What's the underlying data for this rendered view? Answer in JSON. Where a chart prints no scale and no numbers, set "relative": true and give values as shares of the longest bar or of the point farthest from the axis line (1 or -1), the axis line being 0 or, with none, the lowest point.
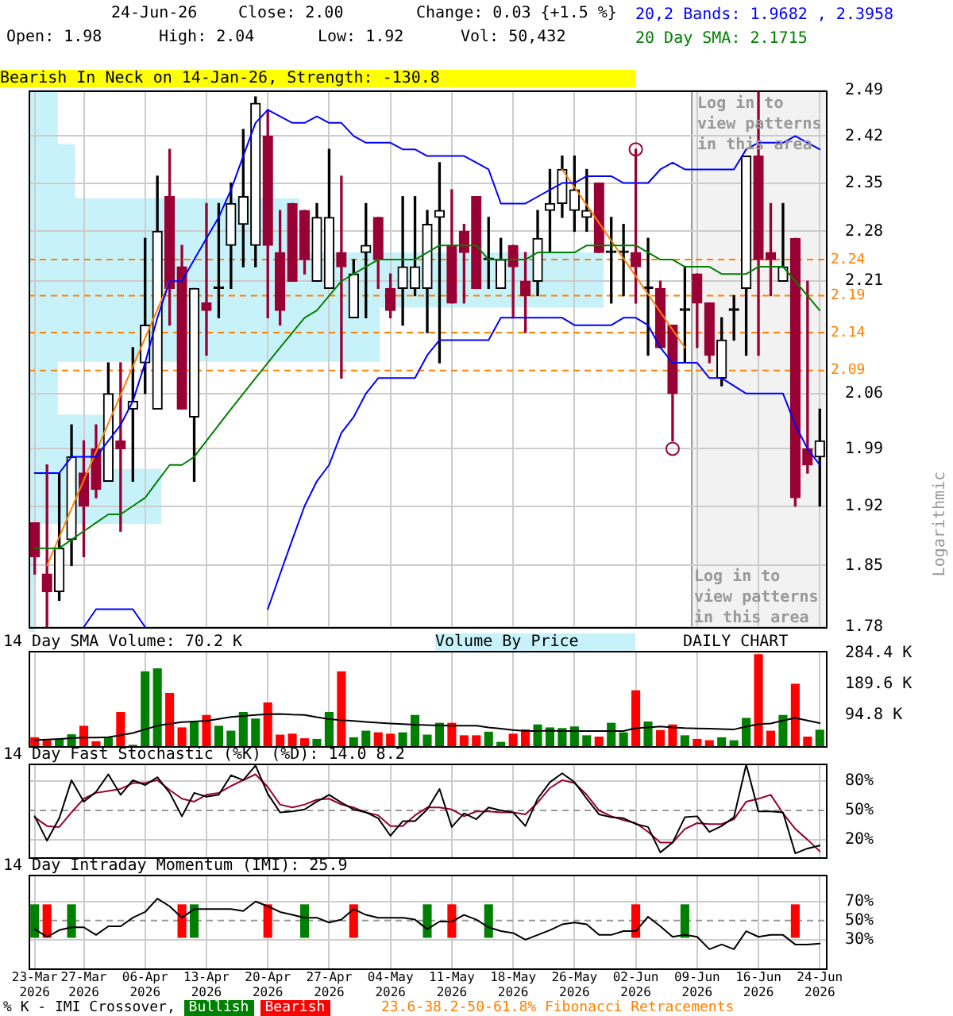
{
  "chart_data": [
    {
      "type": "candlestick",
      "title": "24-Jun-26",
      "ylabel": "Logarithmic",
      "categories": [
        "23-Mar 2026",
        null,
        null,
        null,
        "27-Mar 2026",
        null,
        null,
        null,
        null,
        "06-Apr 2026",
        null,
        null,
        null,
        null,
        "13-Apr 2026",
        null,
        null,
        null,
        null,
        "20-Apr 2026",
        null,
        null,
        null,
        null,
        "27-Apr 2026",
        null,
        null,
        null,
        null,
        "04-May 2026",
        null,
        null,
        null,
        null,
        "11-May 2026",
        null,
        null,
        null,
        null,
        "18-May 2026",
        null,
        null,
        null,
        null,
        "26-May 2026",
        null,
        null,
        null,
        null,
        "02-Jun 2026",
        null,
        null,
        null,
        null,
        "09-Jun 2026",
        null,
        null,
        null,
        null,
        "16-Jun 2026",
        null,
        null,
        null,
        null,
        "24-Jun 2026"
      ],
      "ohlc": [
        [
          1.9,
          1.9,
          1.84,
          1.86
        ],
        [
          1.84,
          1.97,
          1.78,
          1.82
        ],
        [
          1.82,
          1.96,
          1.81,
          1.87
        ],
        [
          1.88,
          2.02,
          1.85,
          1.98
        ],
        [
          1.96,
          2.0,
          1.86,
          1.92
        ],
        [
          1.99,
          2.02,
          1.93,
          1.94
        ],
        [
          1.95,
          2.1,
          1.95,
          2.06
        ],
        [
          2.0,
          2.1,
          1.89,
          1.99
        ],
        [
          2.04,
          2.12,
          1.95,
          2.05
        ],
        [
          2.1,
          2.27,
          2.06,
          2.15
        ],
        [
          2.04,
          2.36,
          2.04,
          2.28
        ],
        [
          2.33,
          2.4,
          2.15,
          2.2
        ],
        [
          2.23,
          2.26,
          2.04,
          2.04
        ],
        [
          2.03,
          2.2,
          1.95,
          2.2
        ],
        [
          2.18,
          2.32,
          2.11,
          2.17
        ],
        [
          2.2,
          2.32,
          2.16,
          2.2
        ],
        [
          2.26,
          2.35,
          2.2,
          2.32
        ],
        [
          2.29,
          2.43,
          2.23,
          2.33
        ],
        [
          2.26,
          2.48,
          2.23,
          2.47
        ],
        [
          2.42,
          2.46,
          2.16,
          2.26
        ],
        [
          2.25,
          2.31,
          2.15,
          2.17
        ],
        [
          2.32,
          2.32,
          2.21,
          2.21
        ],
        [
          2.31,
          2.31,
          2.22,
          2.24
        ],
        [
          2.21,
          2.32,
          2.21,
          2.3
        ],
        [
          2.2,
          2.4,
          2.2,
          2.3
        ],
        [
          2.25,
          2.36,
          2.08,
          2.23
        ],
        [
          2.16,
          2.24,
          2.16,
          2.22
        ],
        [
          2.25,
          2.32,
          2.16,
          2.26
        ],
        [
          2.3,
          2.3,
          2.2,
          2.24
        ],
        [
          2.2,
          2.22,
          2.16,
          2.17
        ],
        [
          2.2,
          2.33,
          2.15,
          2.23
        ],
        [
          2.2,
          2.33,
          2.19,
          2.23
        ],
        [
          2.2,
          2.31,
          2.14,
          2.29
        ],
        [
          2.3,
          2.38,
          2.1,
          2.31
        ],
        [
          2.26,
          2.34,
          2.18,
          2.18
        ],
        [
          2.28,
          2.29,
          2.18,
          2.25
        ],
        [
          2.33,
          2.33,
          2.2,
          2.2
        ],
        [
          2.24,
          2.3,
          2.2,
          2.24
        ],
        [
          2.2,
          2.27,
          2.2,
          2.24
        ],
        [
          2.26,
          2.26,
          2.16,
          2.23
        ],
        [
          2.21,
          2.25,
          2.14,
          2.19
        ],
        [
          2.21,
          2.31,
          2.19,
          2.27
        ],
        [
          2.31,
          2.37,
          2.25,
          2.32
        ],
        [
          2.32,
          2.39,
          2.3,
          2.37
        ],
        [
          2.31,
          2.39,
          2.28,
          2.34
        ],
        [
          2.3,
          2.37,
          2.28,
          2.31
        ],
        [
          2.35,
          2.35,
          2.25,
          2.25
        ],
        [
          2.25,
          2.3,
          2.18,
          2.25
        ],
        [
          2.25,
          2.29,
          2.19,
          2.25
        ],
        [
          2.25,
          2.4,
          2.18,
          2.23
        ],
        [
          2.2,
          2.27,
          2.11,
          2.2
        ],
        [
          2.2,
          2.21,
          2.12,
          2.12
        ],
        [
          2.15,
          2.15,
          2.0,
          2.06
        ],
        [
          2.17,
          2.23,
          2.1,
          2.17
        ],
        [
          2.22,
          2.22,
          2.12,
          2.18
        ],
        [
          2.18,
          2.18,
          2.1,
          2.11
        ],
        [
          2.08,
          2.16,
          2.07,
          2.13
        ],
        [
          2.17,
          2.19,
          2.13,
          2.17
        ],
        [
          2.2,
          2.39,
          2.11,
          2.39
        ],
        [
          2.39,
          2.49,
          2.11,
          2.24
        ],
        [
          2.25,
          2.32,
          2.19,
          2.24
        ],
        [
          2.21,
          2.32,
          2.21,
          2.23
        ],
        [
          2.27,
          2.27,
          1.92,
          1.93
        ],
        [
          1.99,
          2.21,
          1.96,
          1.97
        ],
        [
          1.98,
          2.04,
          1.92,
          2.0
        ]
      ],
      "colors": [
        "#990033",
        "#990033",
        "#000000",
        "#000000",
        "#990033",
        "#990033",
        "#000000",
        "#990033",
        "#000000",
        "#000000",
        "#000000",
        "#990033",
        "#990033",
        "#000000",
        "#990033",
        "#000000",
        "#000000",
        "#000000",
        "#000000",
        "#990033",
        "#990033",
        "#990033",
        "#990033",
        "#000000",
        "#000000",
        "#990033",
        "#000000",
        "#000000",
        "#990033",
        "#990033",
        "#000000",
        "#000000",
        "#000000",
        "#000000",
        "#990033",
        "#990033",
        "#990033",
        "#000000",
        "#000000",
        "#990033",
        "#990033",
        "#000000",
        "#000000",
        "#000000",
        "#000000",
        "#000000",
        "#990033",
        "#000000",
        "#000000",
        "#990033",
        "#000000",
        "#990033",
        "#990033",
        "#000000",
        "#990033",
        "#990033",
        "#000000",
        "#000000",
        "#000000",
        "#990033",
        "#990033",
        "#000000",
        "#990033",
        "#990033",
        "#000000"
      ],
      "series": [
        {
          "name": "20,2 Bands: 1.9682 , 2.3958",
          "type": "line",
          "color": "#0000ff",
          "values": [
            1.96,
            1.96,
            1.96,
            1.98,
            1.98,
            1.98,
            2.0,
            2.02,
            2.05,
            2.1,
            2.16,
            2.21,
            2.21,
            2.24,
            2.27,
            2.3,
            2.34,
            2.39,
            2.44,
            2.46,
            2.45,
            2.44,
            2.44,
            2.45,
            2.44,
            2.44,
            2.42,
            2.41,
            2.41,
            2.41,
            2.4,
            2.4,
            2.39,
            2.39,
            2.39,
            2.39,
            2.38,
            2.37,
            2.32,
            2.32,
            2.32,
            2.33,
            2.34,
            2.35,
            2.35,
            2.36,
            2.36,
            2.36,
            2.35,
            2.35,
            2.35,
            2.37,
            2.38,
            2.37,
            2.37,
            2.37,
            2.37,
            2.37,
            2.4,
            2.41,
            2.41,
            2.41,
            2.42,
            2.41,
            2.4
          ]
        },
        {
          "type": "line",
          "color": "#0000ff",
          "values": [
            null,
            null,
            null,
            null,
            1.78,
            1.8,
            1.8,
            1.8,
            1.8,
            1.78,
            null,
            null,
            null,
            null,
            null,
            null,
            null,
            null,
            null,
            1.8,
            1.84,
            1.88,
            1.92,
            1.95,
            1.97,
            2.01,
            2.03,
            2.06,
            2.08,
            2.08,
            2.08,
            2.08,
            2.11,
            2.13,
            2.13,
            2.13,
            2.13,
            2.13,
            2.16,
            2.16,
            2.16,
            2.16,
            2.16,
            2.16,
            2.15,
            2.15,
            2.15,
            2.15,
            2.16,
            2.16,
            2.15,
            2.12,
            2.1,
            2.1,
            2.1,
            2.08,
            2.08,
            2.07,
            2.06,
            2.06,
            2.06,
            2.06,
            2.02,
            1.99,
            1.97
          ]
        },
        {
          "name": "20 Day SMA: 2.1715",
          "type": "line",
          "color": "#008000",
          "values": [
            1.87,
            1.87,
            1.87,
            1.88,
            1.89,
            1.9,
            1.91,
            1.91,
            1.92,
            1.93,
            1.95,
            1.97,
            1.97,
            1.98,
            2.0,
            2.02,
            2.04,
            2.06,
            2.08,
            2.1,
            2.12,
            2.14,
            2.16,
            2.17,
            2.19,
            2.21,
            2.22,
            2.23,
            2.24,
            2.24,
            2.24,
            2.24,
            2.25,
            2.26,
            2.26,
            2.26,
            2.26,
            2.24,
            2.24,
            2.24,
            2.24,
            2.25,
            2.25,
            2.25,
            2.25,
            2.26,
            2.26,
            2.26,
            2.26,
            2.26,
            2.25,
            2.24,
            2.24,
            2.23,
            2.23,
            2.23,
            2.22,
            2.22,
            2.22,
            2.23,
            2.23,
            2.23,
            2.21,
            2.19,
            2.17
          ]
        },
        {
          "type": "line",
          "color": "#ff8000",
          "values": [
            null,
            1.85,
            null,
            null,
            null,
            null,
            null,
            null,
            null,
            null,
            null,
            2.21,
            null,
            null,
            null,
            null,
            null,
            null,
            null,
            null,
            null,
            null,
            null,
            null,
            null,
            null,
            null,
            null,
            null,
            null,
            null,
            null,
            null,
            null,
            null,
            null,
            null,
            null,
            null,
            null,
            null,
            null,
            null,
            null,
            null,
            null,
            null,
            null,
            null,
            null,
            null,
            null,
            null,
            null,
            null,
            null,
            null,
            null,
            null,
            null,
            null,
            null,
            null,
            null,
            null
          ]
        },
        {
          "type": "line",
          "color": "#ff8000",
          "values": [
            null,
            null,
            null,
            null,
            null,
            null,
            null,
            null,
            null,
            null,
            null,
            null,
            null,
            null,
            null,
            null,
            null,
            null,
            null,
            null,
            null,
            null,
            null,
            null,
            null,
            null,
            null,
            null,
            null,
            null,
            null,
            null,
            null,
            null,
            null,
            null,
            null,
            null,
            null,
            null,
            null,
            null,
            null,
            2.37,
            null,
            null,
            null,
            null,
            null,
            null,
            null,
            null,
            null,
            2.12,
            null,
            null,
            null,
            null,
            null,
            null,
            null,
            null,
            null,
            null,
            null
          ]
        },
        {
          "type": "scatter",
          "marker": "circle",
          "color": "#990033",
          "values": [
            null,
            null,
            null,
            null,
            null,
            null,
            null,
            null,
            null,
            null,
            null,
            null,
            null,
            null,
            null,
            null,
            null,
            null,
            null,
            null,
            null,
            null,
            null,
            null,
            null,
            null,
            null,
            null,
            null,
            null,
            null,
            null,
            null,
            null,
            null,
            null,
            null,
            null,
            null,
            null,
            null,
            null,
            null,
            null,
            null,
            null,
            null,
            null,
            null,
            2.4,
            null,
            null,
            1.99,
            null,
            null,
            null,
            null,
            null,
            null,
            null,
            null,
            null,
            null,
            null,
            null
          ]
        }
      ],
      "ylim": [
        1.78,
        2.49
      ],
      "log": true,
      "yticks": [
        2.49,
        2.42,
        2.35,
        2.28,
        2.21,
        {
          "value": 2.14,
          "label": null
        },
        2.06,
        1.99,
        1.92,
        1.85,
        1.78
      ],
      "grid": true,
      "tick_labels": "y",
      "legend": "top right",
      "ref_lines": [
        {
          "axis": "y",
          "value": 2.24,
          "label": "2.24",
          "color": "#ff8000",
          "line_style": "dashed"
        },
        {
          "axis": "y",
          "value": 2.19,
          "label": "2.19",
          "color": "#ff8000",
          "line_style": "dashed"
        },
        {
          "axis": "y",
          "value": 2.14,
          "label": "2.14",
          "color": "#ff8000",
          "line_style": "dashed"
        },
        {
          "axis": "y",
          "value": 2.09,
          "label": "2.09",
          "color": "#ff8000",
          "line_style": "dashed"
        }
      ],
      "bands": [
        {
          "axis": "x",
          "from": "09-Jun 2026",
          "to": "24-Jun 2026",
          "label": "Log in to view patterns in this area",
          "color": "#f2f2f2"
        }
      ],
      "annotations": [
        "Close: 2.00",
        "Change: 0.03 {+1.5 %}",
        "Open: 1.98",
        "High: 2.04",
        "Low: 1.92",
        "Vol: 50,432",
        "Bearish In Neck on 14-Jan-26, Strength: -130.8",
        "Log in to view patterns in this area",
        "23.6-38.2-50-61.8% Fibonacci Retracements"
      ]
    },
    {
      "type": "bar",
      "orientation": "horizontal",
      "relative": true,
      "title": "Volume By Price",
      "categories": [
        null,
        null,
        null,
        null,
        null,
        null,
        null,
        null,
        null,
        null
      ],
      "values": [
        0.05,
        0.08,
        0.47,
        1,
        0.61,
        0.05,
        0.13,
        0.23,
        0.01,
        0.01
      ],
      "color": "#c8f2fa",
      "tick_labels": false
    },
    {
      "type": "bar",
      "title": "14 Day SMA Volume: 70.2 K",
      "categories": [
        "23-Mar 2026",
        null,
        null,
        null,
        "27-Mar 2026",
        null,
        null,
        null,
        null,
        "06-Apr 2026",
        null,
        null,
        null,
        null,
        "13-Apr 2026",
        null,
        null,
        null,
        null,
        "20-Apr 2026",
        null,
        null,
        null,
        null,
        "27-Apr 2026",
        null,
        null,
        null,
        null,
        "04-May 2026",
        null,
        null,
        null,
        null,
        "11-May 2026",
        null,
        null,
        null,
        null,
        "18-May 2026",
        null,
        null,
        null,
        null,
        "26-May 2026",
        null,
        null,
        null,
        null,
        "02-Jun 2026",
        null,
        null,
        null,
        null,
        "09-Jun 2026",
        null,
        null,
        null,
        null,
        "16-Jun 2026",
        null,
        null,
        null,
        null,
        "24-Jun 2026"
      ],
      "series": [
        {
          "values": [
            27,
            18,
            22,
            36,
            62,
            15,
            26,
            104,
            4,
            228,
            237,
            162,
            57,
            73,
            95,
            62,
            47,
            104,
            84,
            133,
            35,
            38,
            24,
            22,
            104,
            228,
            27,
            47,
            42,
            38,
            42,
            95,
            35,
            71,
            71,
            33,
            33,
            44,
            13,
            38,
            51,
            66,
            57,
            55,
            60,
            33,
            29,
            71,
            42,
            170,
            75,
            49,
            66,
            33,
            22,
            18,
            27,
            18,
            86,
            280,
            47,
            95,
            190,
            29,
            50
          ],
          "colors": [
            "#ff0000",
            "#ff0000",
            "#008000",
            "#008000",
            "#ff0000",
            "#ff0000",
            "#008000",
            "#ff0000",
            "#008000",
            "#008000",
            "#008000",
            "#ff0000",
            "#ff0000",
            "#008000",
            "#ff0000",
            "#008000",
            "#008000",
            "#008000",
            "#008000",
            "#ff0000",
            "#ff0000",
            "#ff0000",
            "#ff0000",
            "#008000",
            "#008000",
            "#ff0000",
            "#008000",
            "#008000",
            "#ff0000",
            "#ff0000",
            "#008000",
            "#008000",
            "#008000",
            "#008000",
            "#ff0000",
            "#ff0000",
            "#ff0000",
            "#008000",
            "#008000",
            "#ff0000",
            "#ff0000",
            "#008000",
            "#008000",
            "#008000",
            "#008000",
            "#008000",
            "#ff0000",
            "#008000",
            "#008000",
            "#ff0000",
            "#008000",
            "#ff0000",
            "#ff0000",
            "#008000",
            "#ff0000",
            "#ff0000",
            "#008000",
            "#008000",
            "#008000",
            "#ff0000",
            "#ff0000",
            "#008000",
            "#ff0000",
            "#ff0000",
            "#008000"
          ]
        },
        {
          "type": "line",
          "color": "#000000",
          "values": [
            18,
            20,
            22,
            24,
            26,
            26,
            27,
            33,
            40,
            51,
            62,
            68,
            73,
            75,
            77,
            83,
            89,
            92,
            95,
            97,
            98,
            96,
            95,
            88,
            82,
            79,
            77,
            74,
            71,
            69,
            67,
            65,
            64,
            63,
            62,
            62,
            62,
            57,
            53,
            49,
            46,
            46,
            47,
            46,
            46,
            46,
            46,
            46,
            46,
            55,
            57,
            60,
            57,
            55,
            54,
            53,
            52,
            51,
            59,
            67,
            69,
            78,
            86,
            78,
            70
          ]
        }
      ],
      "ylim": [
        0,
        290
      ],
      "yticks": [
        {
          "value": 94.8,
          "label": "94.8 K"
        },
        {
          "value": 189.6,
          "label": "189.6 K"
        },
        {
          "value": 284.4,
          "label": "284.4 K"
        }
      ],
      "grid": "x",
      "tick_labels": "y",
      "annotations": [
        "DAILY CHART"
      ]
    },
    {
      "type": "line",
      "title": "14 Day Fast Stochastic (%K) (%D): 14.0  8.2",
      "categories": [
        "23-Mar 2026",
        null,
        null,
        null,
        "27-Mar 2026",
        null,
        null,
        null,
        null,
        "06-Apr 2026",
        null,
        null,
        null,
        null,
        "13-Apr 2026",
        null,
        null,
        null,
        null,
        "20-Apr 2026",
        null,
        null,
        null,
        null,
        "27-Apr 2026",
        null,
        null,
        null,
        null,
        "04-May 2026",
        null,
        null,
        null,
        null,
        "11-May 2026",
        null,
        null,
        null,
        null,
        "18-May 2026",
        null,
        null,
        null,
        null,
        "26-May 2026",
        null,
        null,
        null,
        null,
        "02-Jun 2026",
        null,
        null,
        null,
        null,
        "09-Jun 2026",
        null,
        null,
        null,
        null,
        "16-Jun 2026",
        null,
        null,
        null,
        null,
        "24-Jun 2026"
      ],
      "series": [
        {
          "color": "#000000",
          "values": [
            44,
            19,
            42,
            81,
            59,
            69,
            87,
            66,
            81,
            76,
            84,
            68,
            44,
            68,
            64,
            66,
            86,
            81,
            96,
            67,
            48,
            49,
            51,
            59,
            66,
            58,
            51,
            48,
            42,
            24,
            39,
            39,
            51,
            72,
            33,
            47,
            41,
            53,
            50,
            48,
            34,
            62,
            79,
            88,
            79,
            62,
            46,
            43,
            42,
            36,
            33,
            7,
            17,
            43,
            44,
            28,
            34,
            43,
            97,
            49,
            49,
            48,
            6,
            11,
            14
          ]
        },
        {
          "color": "#990033",
          "values": [
            43,
            34,
            33,
            48,
            62,
            68,
            70,
            72,
            78,
            78,
            81,
            71,
            62,
            59,
            66,
            68,
            75,
            81,
            87,
            74,
            56,
            53,
            56,
            61,
            62,
            56,
            53,
            48,
            45,
            34,
            34,
            45,
            53,
            53,
            51,
            44,
            49,
            49,
            48,
            48,
            46,
            58,
            73,
            81,
            78,
            66,
            50,
            44,
            40,
            37,
            28,
            17,
            17,
            31,
            37,
            36,
            36,
            41,
            59,
            62,
            66,
            47,
            31,
            20,
            8
          ]
        }
      ],
      "ylim": [
        2,
        98
      ],
      "yticks": [
        {
          "value": 20,
          "label": "20%"
        },
        {
          "value": 50,
          "label": "50%"
        },
        {
          "value": 80,
          "label": "80%"
        }
      ],
      "grid": true,
      "tick_labels": "y",
      "ref_lines": [
        {
          "axis": "y",
          "value": 50,
          "color": "#999999",
          "line_style": "dashed"
        }
      ]
    },
    {
      "type": "line",
      "title": "14 Day Intraday Momentum (IMI): 25.9",
      "legend": "bottom",
      "legend_title": "% K - IMI Crossover,",
      "categories": [
        "23-Mar 2026",
        null,
        null,
        null,
        "27-Mar 2026",
        null,
        null,
        null,
        null,
        "06-Apr 2026",
        null,
        null,
        null,
        null,
        "13-Apr 2026",
        null,
        null,
        null,
        null,
        "20-Apr 2026",
        null,
        null,
        null,
        null,
        "27-Apr 2026",
        null,
        null,
        null,
        null,
        "04-May 2026",
        null,
        null,
        null,
        null,
        "11-May 2026",
        null,
        null,
        null,
        null,
        "18-May 2026",
        null,
        null,
        null,
        null,
        "26-May 2026",
        null,
        null,
        null,
        null,
        "02-Jun 2026",
        null,
        null,
        null,
        null,
        "09-Jun 2026",
        null,
        null,
        null,
        null,
        "16-Jun 2026",
        null,
        null,
        null,
        null,
        "24-Jun 2026"
      ],
      "series": [
        {
          "color": "#000000",
          "values": [
            41,
            33,
            40,
            43,
            43,
            35,
            44,
            44,
            53,
            59,
            73,
            65,
            53,
            62,
            62,
            62,
            62,
            60,
            70,
            65,
            59,
            56,
            53,
            53,
            48,
            51,
            62,
            56,
            53,
            53,
            53,
            51,
            41,
            49,
            49,
            56,
            51,
            43,
            39,
            37,
            30,
            35,
            40,
            46,
            48,
            46,
            35,
            35,
            39,
            39,
            54,
            44,
            33,
            35,
            33,
            20,
            25,
            20,
            39,
            33,
            35,
            35,
            25,
            25,
            26
          ]
        },
        {
          "name": "Bullish",
          "type": "bar",
          "color": "#008000",
          "values": [
            35,
            null,
            null,
            35,
            null,
            null,
            null,
            null,
            null,
            null,
            null,
            null,
            null,
            35,
            null,
            null,
            null,
            null,
            null,
            null,
            null,
            null,
            35,
            null,
            null,
            null,
            null,
            null,
            null,
            null,
            null,
            null,
            35,
            null,
            null,
            null,
            null,
            35,
            null,
            null,
            null,
            null,
            null,
            null,
            null,
            null,
            null,
            null,
            null,
            null,
            null,
            null,
            null,
            35,
            null,
            null,
            null,
            null,
            null,
            null,
            null,
            null,
            null,
            null,
            null
          ],
          "base": [
            32,
            null,
            null,
            32,
            null,
            null,
            null,
            null,
            null,
            null,
            null,
            null,
            null,
            32,
            null,
            null,
            null,
            null,
            null,
            null,
            null,
            null,
            32,
            null,
            null,
            null,
            null,
            null,
            null,
            null,
            null,
            null,
            32,
            null,
            null,
            null,
            null,
            32,
            null,
            null,
            null,
            null,
            null,
            null,
            null,
            null,
            null,
            null,
            null,
            null,
            null,
            null,
            null,
            32,
            null,
            null,
            null,
            null,
            null,
            null,
            null,
            null,
            null,
            null,
            null
          ]
        },
        {
          "name": "Bearish",
          "type": "bar",
          "color": "#ff0000",
          "values": [
            null,
            35,
            null,
            null,
            null,
            null,
            null,
            null,
            null,
            null,
            null,
            null,
            35,
            null,
            null,
            null,
            null,
            null,
            null,
            35,
            null,
            null,
            null,
            null,
            null,
            null,
            35,
            null,
            null,
            null,
            null,
            null,
            null,
            null,
            35,
            null,
            null,
            null,
            null,
            null,
            null,
            null,
            null,
            null,
            null,
            null,
            null,
            null,
            null,
            35,
            null,
            null,
            null,
            null,
            null,
            null,
            null,
            null,
            null,
            null,
            null,
            null,
            35,
            null,
            null
          ],
          "base": [
            null,
            32,
            null,
            null,
            null,
            null,
            null,
            null,
            null,
            null,
            null,
            null,
            32,
            null,
            null,
            null,
            null,
            null,
            null,
            32,
            null,
            null,
            null,
            null,
            null,
            null,
            32,
            null,
            null,
            null,
            null,
            null,
            null,
            null,
            32,
            null,
            null,
            null,
            null,
            null,
            null,
            null,
            null,
            null,
            null,
            null,
            null,
            null,
            null,
            32,
            null,
            null,
            null,
            null,
            null,
            null,
            null,
            null,
            null,
            null,
            null,
            null,
            32,
            null,
            null
          ]
        }
      ],
      "ylim": [
        0,
        98
      ],
      "yticks": [
        {
          "value": 30,
          "label": "30%"
        },
        {
          "value": 50,
          "label": "50%"
        },
        {
          "value": 70,
          "label": "70%"
        }
      ],
      "grid": true,
      "ref_lines": [
        {
          "axis": "y",
          "value": 50,
          "color": "#999999",
          "line_style": "dashed"
        }
      ]
    }
  ]
}
